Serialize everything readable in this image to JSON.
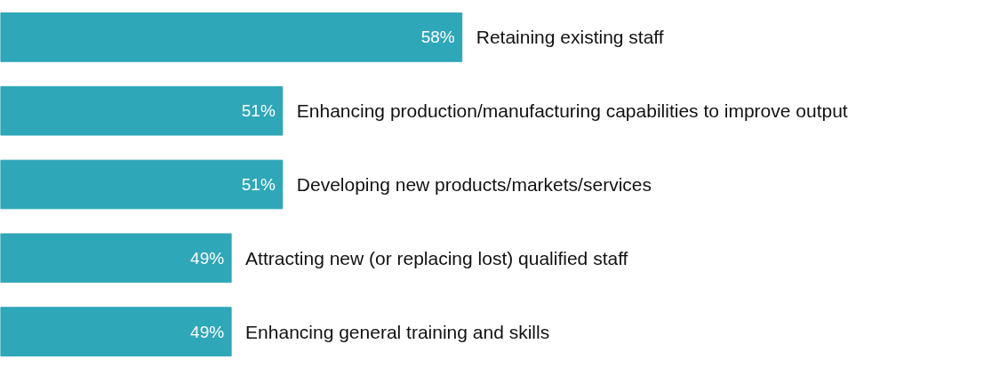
{
  "chart_data": {
    "type": "bar",
    "orientation": "horizontal",
    "categories": [
      "Retaining existing staff",
      "Enhancing production/manufacturing capabilities to improve output",
      "Developing new products/markets/services",
      "Attracting new (or replacing lost) qualified staff",
      "Enhancing general training and skills"
    ],
    "values": [
      58,
      51,
      51,
      49,
      49
    ],
    "value_labels": [
      "58%",
      "51%",
      "51%",
      "49%",
      "49%"
    ],
    "color": "#2ea7b8",
    "xlim": [
      40,
      79
    ],
    "tick_labels": false,
    "grid": false
  }
}
